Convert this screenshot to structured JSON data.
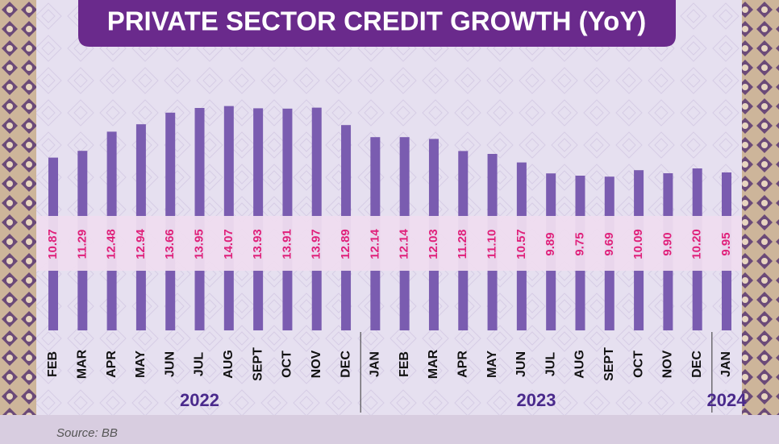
{
  "chart_data": {
    "type": "bar",
    "title": "PRIVATE SECTOR CREDIT GROWTH (YoY)",
    "source": "Source: BB",
    "color": "#7a5cb0",
    "groups": [
      {
        "label": "2022",
        "categories": [
          "FEB",
          "MAR",
          "APR",
          "MAY",
          "JUN",
          "JUL",
          "AUG",
          "SEPT",
          "OCT",
          "NOV",
          "DEC"
        ],
        "values": [
          10.87,
          11.29,
          12.48,
          12.94,
          13.66,
          13.95,
          14.07,
          13.93,
          13.91,
          13.97,
          12.89
        ],
        "value_labels": [
          "10.87",
          "11.29",
          "12.48",
          "12.94",
          "13.66",
          "13.95",
          "14.07",
          "13.93",
          "13.91",
          "13.97",
          "12.89"
        ]
      },
      {
        "label": "2023",
        "categories": [
          "JAN",
          "FEB",
          "MAR",
          "APR",
          "MAY",
          "JUN",
          "JUL",
          "AUG",
          "SEPT",
          "OCT",
          "NOV",
          "DEC"
        ],
        "values": [
          12.14,
          12.14,
          12.03,
          11.28,
          11.1,
          10.57,
          9.89,
          9.75,
          9.69,
          10.09,
          9.9,
          10.2
        ],
        "value_labels": [
          "12.14",
          "12.14",
          "12.03",
          "11.28",
          "11.10",
          "10.57",
          "9.89",
          "9.75",
          "9.69",
          "10.09",
          "9.90",
          "10.20"
        ]
      },
      {
        "label": "2024",
        "categories": [
          "JAN"
        ],
        "values": [
          9.95
        ],
        "value_labels": [
          "9.95"
        ]
      }
    ]
  }
}
